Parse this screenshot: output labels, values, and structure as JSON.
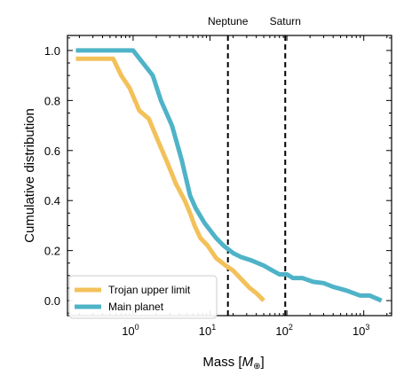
{
  "chart_data": {
    "type": "line",
    "xscale": "log",
    "xlim": [
      0.14,
      2300
    ],
    "ylim": [
      -0.06,
      1.06
    ],
    "xlabel_prefix": "Mass [",
    "xlabel_symbol": "M",
    "xlabel_subscript": "⊕",
    "xlabel_suffix": "]",
    "ylabel": "Cumulative distribution",
    "x_ticks": [
      {
        "value": 1,
        "base": "10",
        "exp": "0"
      },
      {
        "value": 10,
        "base": "10",
        "exp": "1"
      },
      {
        "value": 100,
        "base": "10",
        "exp": "2"
      },
      {
        "value": 1000,
        "base": "10",
        "exp": "3"
      }
    ],
    "y_ticks": [
      {
        "value": 0.0,
        "label": "0.0"
      },
      {
        "value": 0.2,
        "label": "0.2"
      },
      {
        "value": 0.4,
        "label": "0.4"
      },
      {
        "value": 0.6,
        "label": "0.6"
      },
      {
        "value": 0.8,
        "label": "0.8"
      },
      {
        "value": 1.0,
        "label": "1.0"
      }
    ],
    "legend_position": "lower-left",
    "reference_lines": [
      {
        "label": "Neptune",
        "x": 17.1
      },
      {
        "label": "Saturn",
        "x": 95.2
      }
    ],
    "series": [
      {
        "name": "Trojan upper limit",
        "color": "#f3c15a",
        "points": [
          [
            0.18,
            0.967
          ],
          [
            0.55,
            0.967
          ],
          [
            0.7,
            0.9
          ],
          [
            0.9,
            0.85
          ],
          [
            1.2,
            0.76
          ],
          [
            1.6,
            0.727
          ],
          [
            2.1,
            0.64
          ],
          [
            2.8,
            0.55
          ],
          [
            3.6,
            0.467
          ],
          [
            4.7,
            0.4
          ],
          [
            5.5,
            0.35
          ],
          [
            6.3,
            0.3
          ],
          [
            7.5,
            0.25
          ],
          [
            9.3,
            0.22
          ],
          [
            12,
            0.17
          ],
          [
            16,
            0.14
          ],
          [
            20,
            0.12
          ],
          [
            26,
            0.083
          ],
          [
            33,
            0.05
          ],
          [
            40,
            0.03
          ],
          [
            50,
            0.0
          ]
        ]
      },
      {
        "name": "Main planet",
        "color": "#4fb3c8",
        "points": [
          [
            0.18,
            1.0
          ],
          [
            1.0,
            1.0
          ],
          [
            1.8,
            0.9
          ],
          [
            2.3,
            0.8
          ],
          [
            3.2,
            0.7
          ],
          [
            4.3,
            0.56
          ],
          [
            5.5,
            0.42
          ],
          [
            6.5,
            0.37
          ],
          [
            8.5,
            0.31
          ],
          [
            12,
            0.25
          ],
          [
            15,
            0.22
          ],
          [
            20,
            0.19
          ],
          [
            25,
            0.175
          ],
          [
            35,
            0.16
          ],
          [
            50,
            0.14
          ],
          [
            65,
            0.12
          ],
          [
            80,
            0.105
          ],
          [
            100,
            0.105
          ],
          [
            120,
            0.09
          ],
          [
            160,
            0.09
          ],
          [
            220,
            0.075
          ],
          [
            300,
            0.07
          ],
          [
            400,
            0.055
          ],
          [
            600,
            0.04
          ],
          [
            900,
            0.02
          ],
          [
            1200,
            0.02
          ],
          [
            1700,
            0.0
          ]
        ]
      }
    ]
  }
}
